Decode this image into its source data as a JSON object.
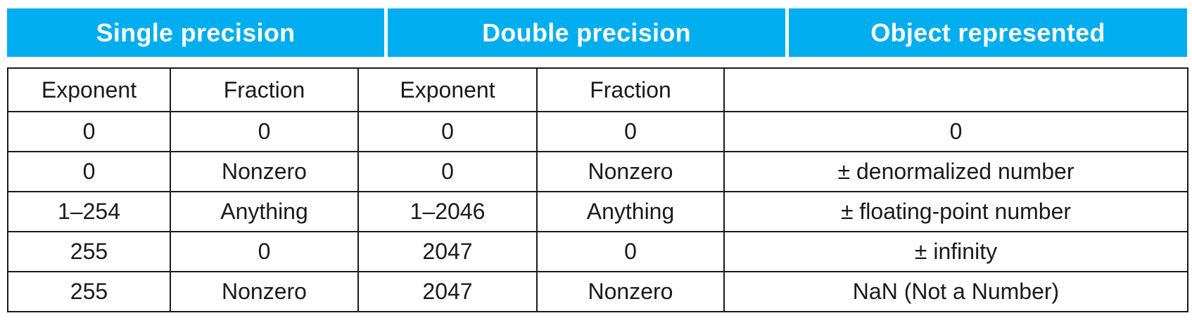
{
  "groups": {
    "single": "Single precision",
    "double": "Double precision",
    "object": "Object represented"
  },
  "column_headers": [
    "Exponent",
    "Fraction",
    "Exponent",
    "Fraction",
    ""
  ],
  "rows": [
    [
      "0",
      "0",
      "0",
      "0",
      "0"
    ],
    [
      "0",
      "Nonzero",
      "0",
      "Nonzero",
      "± denormalized number"
    ],
    [
      "1–254",
      "Anything",
      "1–2046",
      "Anything",
      "± floating-point number"
    ],
    [
      "255",
      "0",
      "2047",
      "0",
      "± infinity"
    ],
    [
      "255",
      "Nonzero",
      "2047",
      "Nonzero",
      "NaN (Not a Number)"
    ]
  ],
  "colors": {
    "header_bg": "#00adef",
    "header_text": "#ffffff",
    "grid_line": "#1a1a1a"
  }
}
